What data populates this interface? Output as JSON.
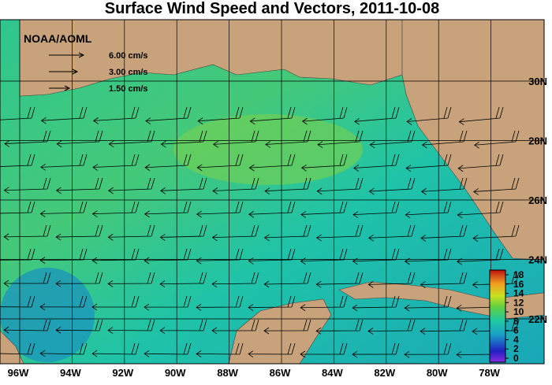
{
  "title": "Surface Wind Speed and Vectors, 2011-10-08",
  "agency": "NOAA/AOML",
  "vector_legend": [
    "6.00 cm/s",
    "3.00 cm/s",
    "1.50 cm/s"
  ],
  "lon_labels": [
    "96W",
    "94W",
    "92W",
    "90W",
    "88W",
    "86W",
    "84W",
    "82W",
    "80W",
    "78W"
  ],
  "lat_labels": [
    "30N",
    "28N",
    "26N",
    "24N",
    "22N"
  ],
  "colorbar": {
    "lim": [
      0,
      18
    ],
    "ticks": [
      0,
      2,
      4,
      6,
      8,
      10,
      12,
      14,
      16,
      18
    ]
  }
}
